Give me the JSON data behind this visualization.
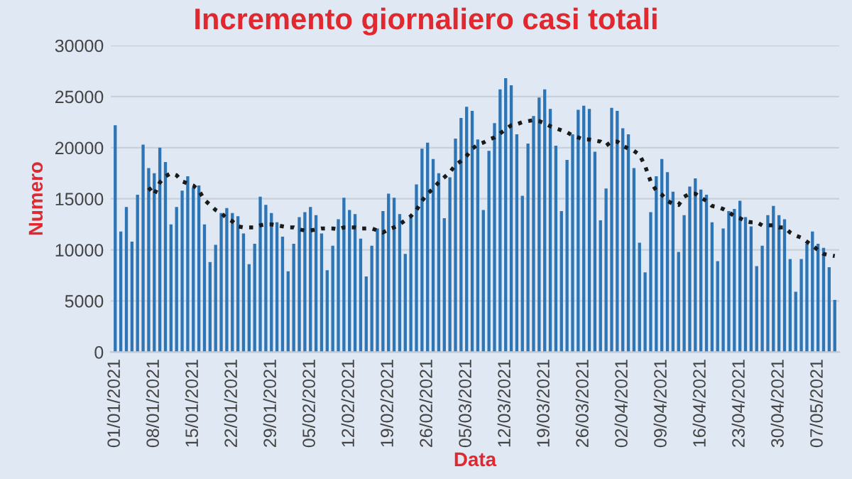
{
  "chart_data": {
    "type": "bar",
    "title": "Incremento giornaliero casi totali",
    "xlabel": "Data",
    "ylabel": "Numero",
    "categories": [
      "01/01/2021",
      null,
      null,
      null,
      null,
      null,
      null,
      "08/01/2021",
      null,
      null,
      null,
      null,
      null,
      null,
      "15/01/2021",
      null,
      null,
      null,
      null,
      null,
      null,
      "22/01/2021",
      null,
      null,
      null,
      null,
      null,
      null,
      "29/01/2021",
      null,
      null,
      null,
      null,
      null,
      null,
      "05/02/2021",
      null,
      null,
      null,
      null,
      null,
      null,
      "12/02/2021",
      null,
      null,
      null,
      null,
      null,
      null,
      "19/02/2021",
      null,
      null,
      null,
      null,
      null,
      null,
      "26/02/2021",
      null,
      null,
      null,
      null,
      null,
      null,
      "05/03/2021",
      null,
      null,
      null,
      null,
      null,
      null,
      "12/03/2021",
      null,
      null,
      null,
      null,
      null,
      null,
      "19/03/2021",
      null,
      null,
      null,
      null,
      null,
      null,
      "26/03/2021",
      null,
      null,
      null,
      null,
      null,
      null,
      "02/04/2021",
      null,
      null,
      null,
      null,
      null,
      null,
      "09/04/2021",
      null,
      null,
      null,
      null,
      null,
      null,
      "16/04/2021",
      null,
      null,
      null,
      null,
      null,
      null,
      "23/04/2021",
      null,
      null,
      null,
      null,
      null,
      null,
      "30/04/2021",
      null,
      null,
      null,
      null,
      null,
      null,
      "07/05/2021",
      null,
      null,
      null
    ],
    "series": [
      {
        "color": "#2e75b6",
        "values": [
          22200,
          11800,
          14200,
          10800,
          15400,
          20300,
          18000,
          17500,
          20000,
          18600,
          12500,
          14200,
          15800,
          17200,
          16100,
          16300,
          12500,
          8800,
          10500,
          13600,
          14100,
          13600,
          13300,
          11600,
          8600,
          10600,
          15200,
          14400,
          13600,
          12700,
          11300,
          7900,
          10600,
          13200,
          13700,
          14200,
          13400,
          11600,
          8000,
          10400,
          13000,
          15100,
          13900,
          13500,
          11100,
          7400,
          10400,
          12100,
          13800,
          15500,
          15100,
          13500,
          9600,
          13300,
          16400,
          19900,
          20500,
          18900,
          17500,
          13100,
          17100,
          20900,
          22900,
          24000,
          23600,
          20800,
          13900,
          19700,
          22400,
          25700,
          26800,
          26100,
          21300,
          15300,
          20400,
          23100,
          24900,
          25700,
          23800,
          20200,
          13800,
          18800,
          21300,
          23700,
          24100,
          23800,
          19600,
          12900,
          16000,
          23900,
          23600,
          21900,
          21300,
          18000,
          10700,
          7800,
          13700,
          17200,
          18900,
          17600,
          15700,
          9800,
          13400,
          16200,
          17000,
          15900,
          15400,
          12700,
          8900,
          12100,
          13800,
          14000,
          14800,
          13200,
          12300,
          8400,
          10400,
          13400,
          14300,
          13400,
          13000,
          9100,
          5900,
          9100,
          10600,
          11800,
          10600,
          10200,
          8300,
          5100
        ]
      },
      {
        "type": "line",
        "color": "#1a1a1a",
        "line_style": "dotted",
        "values": [
          null,
          null,
          null,
          null,
          null,
          null,
          16100,
          15400,
          16600,
          17200,
          17500,
          17300,
          16700,
          16500,
          16300,
          15800,
          14900,
          14400,
          13900,
          13600,
          13100,
          12800,
          12300,
          12200,
          12200,
          12200,
          12400,
          12500,
          12500,
          12400,
          12300,
          12200,
          12200,
          12000,
          11900,
          11900,
          12000,
          12100,
          12100,
          12100,
          12000,
          12200,
          12200,
          12200,
          12100,
          12100,
          12100,
          11900,
          11700,
          12000,
          12200,
          12500,
          12900,
          13300,
          13900,
          14800,
          15500,
          16000,
          16600,
          17100,
          17600,
          18300,
          18700,
          19200,
          19900,
          20300,
          20500,
          20800,
          21000,
          21400,
          21800,
          22200,
          22300,
          22500,
          22600,
          22700,
          22600,
          22400,
          22100,
          21900,
          21700,
          21500,
          21200,
          21000,
          20800,
          20800,
          20700,
          20600,
          20200,
          20600,
          20600,
          20200,
          19900,
          19700,
          19300,
          18200,
          16700,
          15800,
          15400,
          14800,
          14500,
          14400,
          15200,
          15500,
          15500,
          15100,
          14800,
          14300,
          14200,
          14000,
          13700,
          13300,
          13100,
          12800,
          12700,
          12700,
          12400,
          12400,
          12400,
          12200,
          12200,
          11700,
          11400,
          11200,
          10800,
          10400,
          10000,
          9600,
          9500,
          9400
        ]
      }
    ],
    "ylim": [
      0,
      30000
    ],
    "yticks": [
      0,
      5000,
      10000,
      15000,
      20000,
      25000,
      30000
    ],
    "grid": "y"
  }
}
